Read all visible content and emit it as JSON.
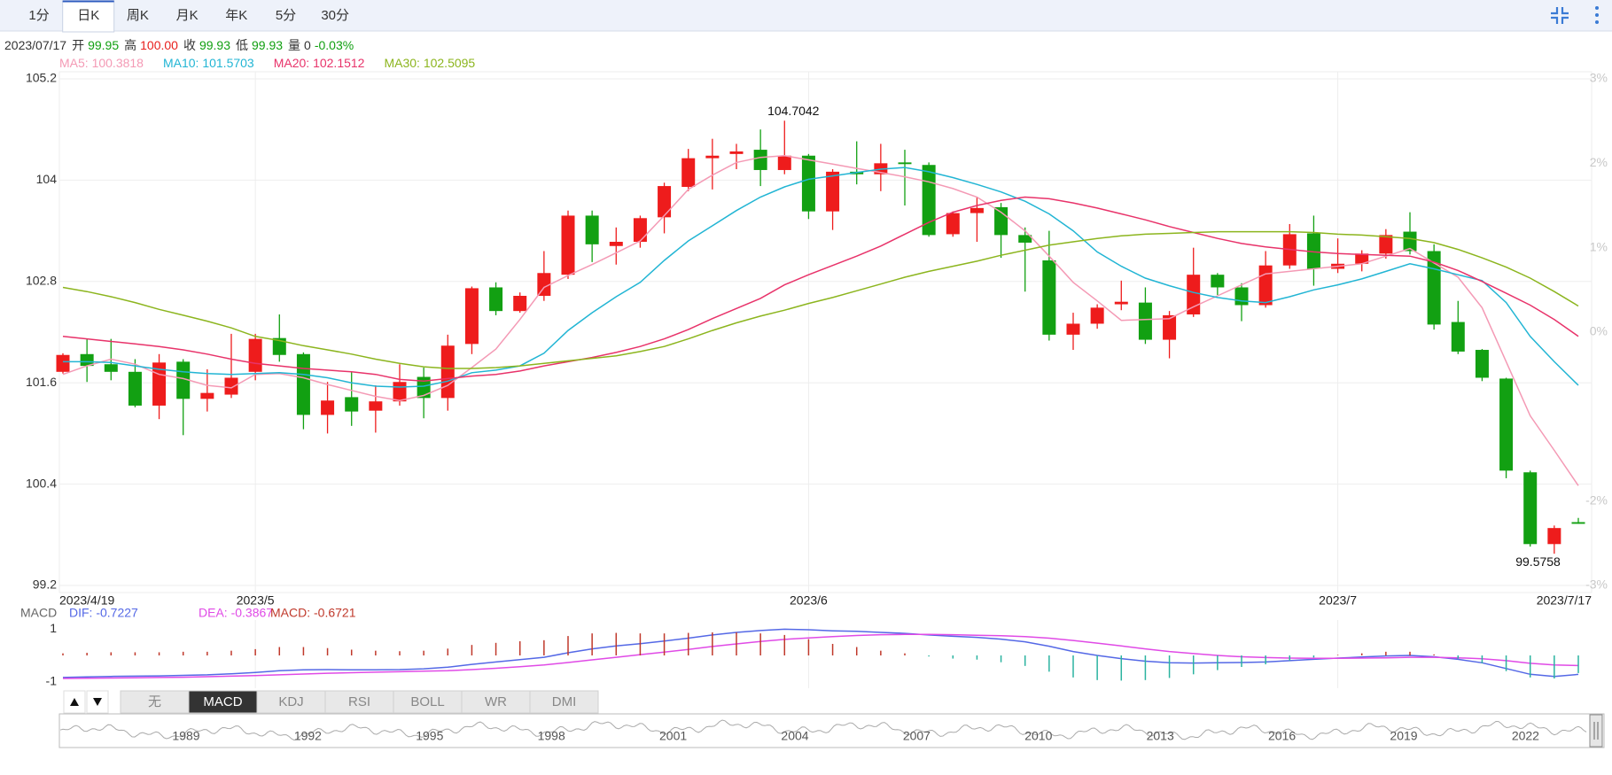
{
  "tabs": {
    "items": [
      "1分",
      "日K",
      "周K",
      "月K",
      "年K",
      "5分",
      "30分"
    ],
    "active": 1
  },
  "header": {
    "date": "2023/07/17",
    "fields": [
      {
        "label": "开",
        "value": "99.95",
        "color": "#12a012"
      },
      {
        "label": "高",
        "value": "100.00",
        "color": "#e8201d"
      },
      {
        "label": "收",
        "value": "99.93",
        "color": "#12a012"
      },
      {
        "label": "低",
        "value": "99.93",
        "color": "#12a012"
      },
      {
        "label": "量",
        "value": "0",
        "color": "#333333"
      },
      {
        "value": "-0.03%",
        "color": "#12a012"
      }
    ]
  },
  "chart_data": [
    {
      "type": "candlestick",
      "up_color": "#ee1c1c",
      "down_color": "#12a012",
      "grid": true,
      "categories": [
        "2023/4/19",
        null,
        null,
        null,
        null,
        null,
        null,
        null,
        "2023/5",
        null,
        null,
        null,
        null,
        null,
        null,
        null,
        null,
        null,
        null,
        null,
        null,
        null,
        null,
        null,
        null,
        null,
        null,
        null,
        null,
        null,
        null,
        "2023/6",
        null,
        null,
        null,
        null,
        null,
        null,
        null,
        null,
        null,
        null,
        null,
        null,
        null,
        null,
        null,
        null,
        null,
        null,
        null,
        null,
        null,
        "2023/7",
        null,
        null,
        null,
        null,
        null,
        null,
        null,
        null,
        null,
        "2023/7/17"
      ],
      "open": [
        101.73,
        101.94,
        101.82,
        101.73,
        101.33,
        101.85,
        101.41,
        101.46,
        101.73,
        102.13,
        101.94,
        101.22,
        101.43,
        101.27,
        101.38,
        101.67,
        101.42,
        102.06,
        102.73,
        102.45,
        102.63,
        102.88,
        103.58,
        103.22,
        103.27,
        103.56,
        103.92,
        104.26,
        104.31,
        104.36,
        104.12,
        104.29,
        103.63,
        104.1,
        104.07,
        104.21,
        104.18,
        103.36,
        103.61,
        103.68,
        103.35,
        103.05,
        102.17,
        102.3,
        102.53,
        102.55,
        102.11,
        102.41,
        102.88,
        102.73,
        102.52,
        102.99,
        103.37,
        102.95,
        103.01,
        103.13,
        103.39,
        103.16,
        102.32,
        101.99,
        101.65,
        100.54,
        99.69,
        99.95
      ],
      "high": [
        101.95,
        102.12,
        102.12,
        101.88,
        101.94,
        101.88,
        101.76,
        102.18,
        102.18,
        102.41,
        101.96,
        101.61,
        101.73,
        101.57,
        101.82,
        101.78,
        102.17,
        102.74,
        102.79,
        102.67,
        103.16,
        103.64,
        103.64,
        103.44,
        103.58,
        103.97,
        104.37,
        104.49,
        104.43,
        104.6,
        104.7042,
        104.31,
        104.13,
        104.46,
        104.43,
        104.36,
        104.21,
        103.63,
        103.8,
        103.73,
        103.44,
        103.4,
        102.43,
        102.53,
        102.81,
        102.73,
        102.45,
        103.2,
        102.9,
        102.78,
        103.16,
        103.48,
        103.58,
        103.31,
        103.17,
        103.42,
        103.62,
        103.24,
        102.57,
        102.0,
        101.66,
        100.56,
        99.91,
        100.0
      ],
      "low": [
        101.71,
        101.61,
        101.63,
        101.31,
        101.17,
        100.98,
        101.26,
        101.42,
        101.63,
        101.85,
        101.05,
        101.0,
        101.09,
        101.01,
        101.33,
        101.18,
        101.27,
        101.94,
        102.4,
        102.43,
        102.57,
        102.83,
        103.03,
        103.0,
        103.2,
        103.37,
        103.87,
        103.89,
        104.13,
        103.93,
        104.07,
        103.54,
        103.41,
        103.95,
        103.87,
        103.7,
        103.33,
        103.33,
        103.27,
        103.08,
        102.68,
        102.1,
        101.99,
        102.24,
        102.46,
        102.06,
        101.89,
        102.38,
        102.64,
        102.33,
        102.49,
        102.95,
        102.75,
        102.9,
        102.92,
        103.07,
        103.12,
        102.23,
        101.94,
        101.62,
        100.47,
        99.66,
        99.5758,
        99.93
      ],
      "close": [
        101.93,
        101.8,
        101.73,
        101.33,
        101.84,
        101.41,
        101.48,
        101.66,
        102.12,
        101.93,
        101.22,
        101.39,
        101.26,
        101.38,
        101.61,
        101.42,
        102.04,
        102.72,
        102.45,
        102.63,
        102.9,
        103.58,
        103.24,
        103.27,
        103.55,
        103.93,
        104.26,
        104.29,
        104.34,
        104.12,
        104.29,
        103.63,
        104.1,
        104.07,
        104.2,
        104.19,
        103.35,
        103.61,
        103.67,
        103.35,
        103.26,
        102.17,
        102.3,
        102.49,
        102.56,
        102.11,
        102.4,
        102.88,
        102.73,
        102.52,
        102.99,
        103.36,
        102.95,
        103.01,
        103.13,
        103.35,
        103.16,
        102.29,
        101.97,
        101.66,
        100.56,
        99.69,
        99.88,
        99.93
      ],
      "series": [
        {
          "name": "MA5: 100.3818",
          "color": "#f49ab5",
          "values": [
            101.7,
            101.8,
            101.88,
            101.82,
            101.7,
            101.65,
            101.57,
            101.54,
            101.7,
            101.71,
            101.66,
            101.58,
            101.51,
            101.44,
            101.39,
            101.45,
            101.57,
            101.78,
            102.0,
            102.35,
            102.73,
            102.87,
            103.0,
            103.14,
            103.28,
            103.58,
            103.89,
            104.06,
            104.21,
            104.27,
            104.29,
            104.24,
            104.19,
            104.14,
            104.09,
            104.04,
            103.98,
            103.9,
            103.8,
            103.62,
            103.4,
            103.1,
            102.79,
            102.57,
            102.34,
            102.35,
            102.36,
            102.5,
            102.63,
            102.76,
            102.89,
            102.92,
            102.95,
            102.98,
            103.01,
            103.1,
            103.19,
            103.02,
            102.85,
            102.49,
            101.85,
            101.21,
            100.8,
            100.3818
          ]
        },
        {
          "name": "MA10: 101.5703",
          "color": "#22b5d4",
          "values": [
            101.85,
            101.85,
            101.84,
            101.8,
            101.76,
            101.73,
            101.71,
            101.7,
            101.71,
            101.72,
            101.7,
            101.66,
            101.6,
            101.56,
            101.55,
            101.56,
            101.62,
            101.72,
            101.75,
            101.8,
            101.95,
            102.22,
            102.43,
            102.62,
            102.79,
            103.05,
            103.28,
            103.46,
            103.64,
            103.8,
            103.92,
            104.01,
            104.05,
            104.09,
            104.13,
            104.15,
            104.1,
            104.03,
            103.95,
            103.86,
            103.75,
            103.6,
            103.4,
            103.15,
            102.98,
            102.84,
            102.75,
            102.67,
            102.61,
            102.57,
            102.55,
            102.62,
            102.7,
            102.76,
            102.83,
            102.92,
            103.01,
            102.95,
            102.88,
            102.81,
            102.55,
            102.15,
            101.85,
            101.5703
          ]
        },
        {
          "name": "MA20: 102.1512",
          "color": "#e8336a",
          "values": [
            102.15,
            102.12,
            102.09,
            102.06,
            102.03,
            101.99,
            101.94,
            101.88,
            101.83,
            101.8,
            101.77,
            101.75,
            101.73,
            101.7,
            101.64,
            101.62,
            101.65,
            101.68,
            101.7,
            101.74,
            101.8,
            101.85,
            101.9,
            101.96,
            102.03,
            102.12,
            102.23,
            102.36,
            102.48,
            102.6,
            102.76,
            102.88,
            102.99,
            103.1,
            103.22,
            103.36,
            103.5,
            103.62,
            103.7,
            103.76,
            103.8,
            103.78,
            103.73,
            103.67,
            103.6,
            103.53,
            103.45,
            103.38,
            103.31,
            103.25,
            103.21,
            103.18,
            103.15,
            103.13,
            103.12,
            103.11,
            103.1,
            103.03,
            102.93,
            102.8,
            102.66,
            102.52,
            102.35,
            102.1512
          ]
        },
        {
          "name": "MA30: 102.5095",
          "color": "#8cb51e",
          "values": [
            102.73,
            102.68,
            102.62,
            102.55,
            102.47,
            102.4,
            102.33,
            102.25,
            102.15,
            102.1,
            102.04,
            101.99,
            101.94,
            101.88,
            101.83,
            101.79,
            101.77,
            101.77,
            101.78,
            101.8,
            101.83,
            101.86,
            101.89,
            101.92,
            101.97,
            102.03,
            102.12,
            102.22,
            102.31,
            102.39,
            102.46,
            102.54,
            102.61,
            102.69,
            102.77,
            102.85,
            102.92,
            102.98,
            103.04,
            103.11,
            103.17,
            103.23,
            103.27,
            103.31,
            103.34,
            103.36,
            103.37,
            103.38,
            103.39,
            103.39,
            103.39,
            103.39,
            103.38,
            103.36,
            103.35,
            103.33,
            103.31,
            103.26,
            103.18,
            103.08,
            102.97,
            102.84,
            102.68,
            102.5095
          ]
        }
      ],
      "ylim": [
        99.2,
        105.2
      ],
      "yticks": [
        99.2,
        100.4,
        101.6,
        102.8,
        104,
        105.2
      ],
      "y2lim": [
        -3,
        3
      ],
      "y2ticks": [
        {
          "value": 3,
          "label": "3%"
        },
        {
          "value": 2,
          "label": "2%"
        },
        {
          "value": 1,
          "label": "1%"
        },
        {
          "value": 0,
          "label": "0%"
        },
        {
          "value": -2,
          "label": "-2%"
        },
        {
          "value": -3,
          "label": "-3%"
        }
      ]
    },
    {
      "type": "macd",
      "title": "MACD",
      "ylim": [
        -1.25,
        1.25
      ],
      "yticks": [
        1,
        -1
      ],
      "series": [
        {
          "name": "DIF: -0.7227",
          "color": "#5468e6",
          "values": [
            -0.84,
            -0.82,
            -0.8,
            -0.79,
            -0.78,
            -0.76,
            -0.74,
            -0.7,
            -0.65,
            -0.58,
            -0.55,
            -0.54,
            -0.55,
            -0.55,
            -0.54,
            -0.51,
            -0.45,
            -0.34,
            -0.25,
            -0.16,
            -0.07,
            0.1,
            0.25,
            0.36,
            0.45,
            0.55,
            0.66,
            0.78,
            0.88,
            0.95,
            1.0,
            0.98,
            0.94,
            0.92,
            0.88,
            0.84,
            0.78,
            0.73,
            0.69,
            0.62,
            0.52,
            0.35,
            0.15,
            0.0,
            -0.12,
            -0.22,
            -0.28,
            -0.29,
            -0.28,
            -0.27,
            -0.25,
            -0.2,
            -0.15,
            -0.1,
            -0.06,
            -0.02,
            0.0,
            -0.05,
            -0.15,
            -0.28,
            -0.5,
            -0.72,
            -0.8,
            -0.7227
          ]
        },
        {
          "name": "DEA: -0.3867",
          "color": "#e04ae6",
          "values": [
            -0.88,
            -0.87,
            -0.86,
            -0.85,
            -0.84,
            -0.83,
            -0.81,
            -0.79,
            -0.77,
            -0.74,
            -0.71,
            -0.68,
            -0.66,
            -0.64,
            -0.62,
            -0.6,
            -0.58,
            -0.54,
            -0.49,
            -0.43,
            -0.36,
            -0.27,
            -0.17,
            -0.07,
            0.03,
            0.13,
            0.23,
            0.34,
            0.44,
            0.53,
            0.61,
            0.67,
            0.72,
            0.76,
            0.79,
            0.8,
            0.8,
            0.79,
            0.77,
            0.75,
            0.72,
            0.66,
            0.57,
            0.47,
            0.36,
            0.25,
            0.15,
            0.07,
            0.0,
            -0.05,
            -0.08,
            -0.1,
            -0.11,
            -0.11,
            -0.1,
            -0.09,
            -0.07,
            -0.07,
            -0.09,
            -0.13,
            -0.2,
            -0.3,
            -0.36,
            -0.3867
          ]
        },
        {
          "name": "MACD: -0.6721",
          "kind": "bar",
          "color": "#c0392b",
          "down_color": "#2bb3a0",
          "values": [
            0.08,
            0.1,
            0.12,
            0.12,
            0.12,
            0.14,
            0.14,
            0.18,
            0.24,
            0.32,
            0.32,
            0.28,
            0.22,
            0.18,
            0.16,
            0.18,
            0.26,
            0.4,
            0.48,
            0.54,
            0.58,
            0.74,
            0.84,
            0.86,
            0.84,
            0.84,
            0.86,
            0.88,
            0.88,
            0.84,
            0.78,
            0.62,
            0.44,
            0.32,
            0.18,
            0.08,
            -0.04,
            -0.12,
            -0.16,
            -0.26,
            -0.4,
            -0.62,
            -0.84,
            -0.94,
            -0.96,
            -0.94,
            -0.86,
            -0.72,
            -0.56,
            -0.44,
            -0.34,
            -0.2,
            -0.08,
            0.02,
            0.08,
            0.14,
            0.14,
            0.04,
            -0.12,
            -0.3,
            -0.6,
            -0.84,
            -0.88,
            -0.6721
          ]
        }
      ]
    }
  ],
  "indicator_tabs": {
    "items": [
      "无",
      "MACD",
      "KDJ",
      "RSI",
      "BOLL",
      "WR",
      "DMI"
    ],
    "active": 1
  },
  "navigator": {
    "labels": [
      "1989",
      "1992",
      "1995",
      "1998",
      "2001",
      "2004",
      "2007",
      "2010",
      "2013",
      "2016",
      "2019",
      "2022"
    ]
  }
}
